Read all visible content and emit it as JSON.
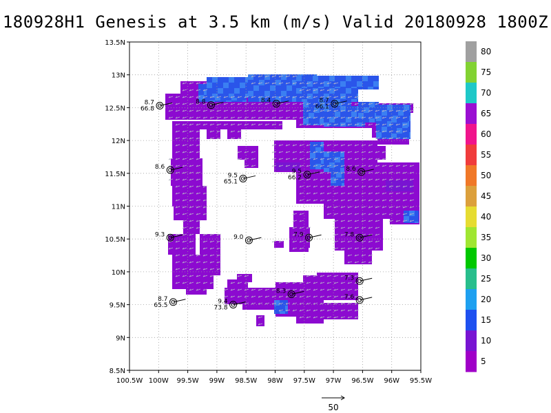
{
  "title": "180928H1 Genesis at 3.5 km (m/s) Valid 20180928 1800Z",
  "map": {
    "lon_range": [
      -100.5,
      -95.5
    ],
    "lat_range": [
      8.5,
      13.5
    ],
    "lon_ticks": [
      "100.5W",
      "100W",
      "99.5W",
      "99W",
      "98.5W",
      "98W",
      "97.5W",
      "97W",
      "96.5W",
      "96W",
      "95.5W"
    ],
    "lat_ticks": [
      "8.5N",
      "9N",
      "9.5N",
      "10N",
      "10.5N",
      "11N",
      "11.5N",
      "12N",
      "12.5N",
      "13N",
      "13.5N"
    ],
    "grid": "dotted",
    "field": "wind speed shaded, mostly 5-15 m/s"
  },
  "stations": [
    {
      "lon": -99.98,
      "lat": 12.53,
      "labels": [
        "8.7",
        "66.8"
      ]
    },
    {
      "lon": -99.1,
      "lat": 12.54,
      "labels": [
        "8.8"
      ]
    },
    {
      "lon": -97.98,
      "lat": 12.56,
      "labels": [
        "8.4"
      ]
    },
    {
      "lon": -96.98,
      "lat": 12.56,
      "labels": [
        "8.7",
        "66.1"
      ]
    },
    {
      "lon": -99.8,
      "lat": 11.55,
      "labels": [
        "8.6"
      ]
    },
    {
      "lon": -98.55,
      "lat": 11.42,
      "labels": [
        "9.5",
        "65.1"
      ]
    },
    {
      "lon": -97.45,
      "lat": 11.48,
      "labels": [
        "9.5",
        "66.2"
      ]
    },
    {
      "lon": -96.52,
      "lat": 11.52,
      "labels": [
        "8.6"
      ]
    },
    {
      "lon": -99.8,
      "lat": 10.52,
      "labels": [
        "9.3"
      ]
    },
    {
      "lon": -98.45,
      "lat": 10.48,
      "labels": [
        "9.0"
      ]
    },
    {
      "lon": -97.42,
      "lat": 10.52,
      "labels": [
        "7.9"
      ]
    },
    {
      "lon": -96.55,
      "lat": 10.52,
      "labels": [
        "7.8"
      ]
    },
    {
      "lon": -96.55,
      "lat": 9.86,
      "labels": [
        "7.3"
      ]
    },
    {
      "lon": -96.55,
      "lat": 9.57,
      "labels": [
        "7.6"
      ]
    },
    {
      "lon": -97.72,
      "lat": 9.66,
      "labels": [
        "8.3"
      ]
    },
    {
      "lon": -98.72,
      "lat": 9.5,
      "labels": [
        "9.4",
        "73.8"
      ]
    },
    {
      "lon": -99.75,
      "lat": 9.54,
      "labels": [
        "8.7",
        "65.5"
      ]
    }
  ],
  "colorbar": {
    "labels": [
      "80",
      "75",
      "70",
      "65",
      "60",
      "55",
      "50",
      "45",
      "40",
      "35",
      "30",
      "25",
      "20",
      "15",
      "10",
      "5"
    ],
    "colors": [
      "#a0a0a0",
      "#82d232",
      "#1ec8c8",
      "#9a0fd2",
      "#f0148c",
      "#f03c3c",
      "#f07828",
      "#dca03c",
      "#e6dc32",
      "#a0e632",
      "#00c800",
      "#28be8c",
      "#1ea0f0",
      "#1e50f0",
      "#7814d2",
      "#a000c8"
    ]
  },
  "scale": {
    "label": "50"
  }
}
